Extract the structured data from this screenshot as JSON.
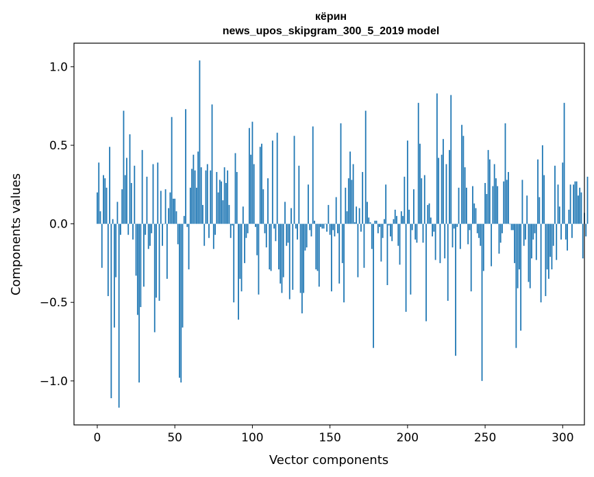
{
  "chart_data": {
    "type": "bar",
    "title_line1": "кёрин",
    "title_line2": "news_upos_skipgram_300_5_2019 model",
    "xlabel": "Vector components",
    "ylabel": "Components values",
    "xlim": [
      -15,
      314
    ],
    "ylim": [
      -1.28,
      1.15
    ],
    "xticks": [
      0,
      50,
      100,
      150,
      200,
      250,
      300
    ],
    "yticks": [
      -1.0,
      -0.5,
      0.0,
      0.5,
      1.0
    ],
    "xtick_labels": [
      "0",
      "50",
      "100",
      "150",
      "200",
      "250",
      "300"
    ],
    "ytick_labels": [
      "−1.0",
      "−0.5",
      "0.0",
      "0.5",
      "1.0"
    ],
    "bar_color": "#1f77b4",
    "values": [
      0.2,
      0.39,
      0.08,
      -0.28,
      0.31,
      0.29,
      0.23,
      -0.46,
      0.49,
      -1.11,
      0.03,
      -0.66,
      -0.34,
      0.14,
      -1.17,
      -0.07,
      0.22,
      0.72,
      0.31,
      0.42,
      -0.07,
      0.57,
      0.26,
      -0.1,
      0.37,
      -0.33,
      -0.58,
      -1.01,
      -0.53,
      0.47,
      -0.4,
      -0.07,
      0.3,
      -0.16,
      -0.14,
      -0.06,
      0.38,
      -0.69,
      -0.47,
      0.39,
      -0.49,
      0.21,
      -0.14,
      0.0,
      0.22,
      -0.35,
      0.1,
      0.2,
      0.68,
      0.16,
      0.16,
      0.08,
      -0.13,
      -0.98,
      -1.01,
      -0.66,
      0.05,
      0.73,
      -0.02,
      -0.29,
      0.23,
      0.35,
      0.44,
      0.34,
      0.23,
      0.46,
      1.04,
      0.36,
      0.12,
      -0.14,
      0.34,
      0.38,
      -0.09,
      0.34,
      0.76,
      -0.16,
      -0.07,
      0.33,
      0.2,
      0.28,
      0.27,
      0.15,
      0.36,
      0.26,
      0.34,
      0.12,
      -0.09,
      -0.01,
      -0.5,
      0.45,
      0.33,
      -0.61,
      -0.35,
      -0.43,
      0.11,
      -0.25,
      -0.09,
      -0.06,
      0.61,
      0.44,
      0.65,
      0.38,
      -0.02,
      -0.2,
      -0.45,
      0.49,
      0.51,
      0.22,
      -0.06,
      -0.15,
      0.29,
      -0.29,
      -0.3,
      0.53,
      -0.03,
      -0.11,
      0.58,
      -0.29,
      -0.38,
      -0.44,
      -0.34,
      0.14,
      -0.14,
      -0.12,
      -0.48,
      0.1,
      -0.42,
      0.56,
      -0.03,
      -0.1,
      0.37,
      -0.44,
      -0.57,
      -0.44,
      -0.17,
      -0.15,
      0.25,
      -0.04,
      -0.08,
      0.62,
      0.02,
      -0.29,
      -0.3,
      -0.4,
      -0.02,
      -0.03,
      -0.03,
      0.0,
      -0.05,
      0.12,
      -0.07,
      -0.43,
      -0.04,
      -0.08,
      0.17,
      -0.06,
      -0.38,
      0.64,
      -0.25,
      -0.5,
      0.23,
      0.08,
      0.29,
      0.46,
      0.28,
      0.38,
      0.01,
      0.11,
      -0.34,
      0.1,
      -0.05,
      0.33,
      -0.28,
      0.72,
      0.14,
      0.04,
      0.01,
      -0.16,
      -0.79,
      0.02,
      0.02,
      -0.06,
      -0.02,
      -0.24,
      -0.09,
      0.03,
      0.25,
      -0.39,
      -0.01,
      -0.08,
      -0.11,
      0.03,
      0.09,
      0.05,
      -0.14,
      -0.26,
      0.08,
      0.05,
      0.3,
      -0.56,
      0.53,
      0.09,
      -0.45,
      -0.04,
      0.22,
      -0.1,
      -0.12,
      0.77,
      0.51,
      0.29,
      -0.12,
      0.31,
      -0.62,
      0.12,
      0.13,
      0.04,
      -0.08,
      -0.05,
      -0.23,
      0.83,
      0.42,
      -0.25,
      0.44,
      0.54,
      -0.22,
      0.38,
      -0.49,
      0.47,
      0.82,
      -0.15,
      -0.03,
      -0.84,
      -0.02,
      0.23,
      -0.16,
      0.63,
      0.56,
      0.36,
      0.23,
      -0.13,
      -0.04,
      -0.43,
      0.24,
      0.13,
      0.1,
      -0.06,
      -0.09,
      -0.14,
      -1.0,
      -0.3,
      0.26,
      0.19,
      0.47,
      0.41,
      -0.27,
      0.24,
      0.38,
      0.29,
      0.24,
      -0.19,
      -0.12,
      -0.06,
      0.27,
      0.64,
      0.28,
      0.33,
      0.0,
      -0.04,
      -0.04,
      -0.25,
      -0.79,
      -0.41,
      -0.29,
      -0.68,
      0.28,
      -0.14,
      -0.1,
      0.18,
      -0.37,
      -0.41,
      -0.22,
      -0.1,
      -0.06,
      -0.23,
      0.41,
      0.17,
      -0.5,
      0.5,
      0.31,
      -0.46,
      -0.29,
      -0.35,
      -0.21,
      -0.29,
      -0.14,
      0.37,
      -0.23,
      0.25,
      0.11,
      -0.1,
      0.39,
      0.77,
      -0.1,
      -0.17,
      0.09,
      0.25,
      -0.09,
      0.25,
      0.27,
      0.27,
      0.18,
      0.23,
      0.2,
      -0.22,
      0.07,
      -0.08,
      0.3
    ]
  }
}
